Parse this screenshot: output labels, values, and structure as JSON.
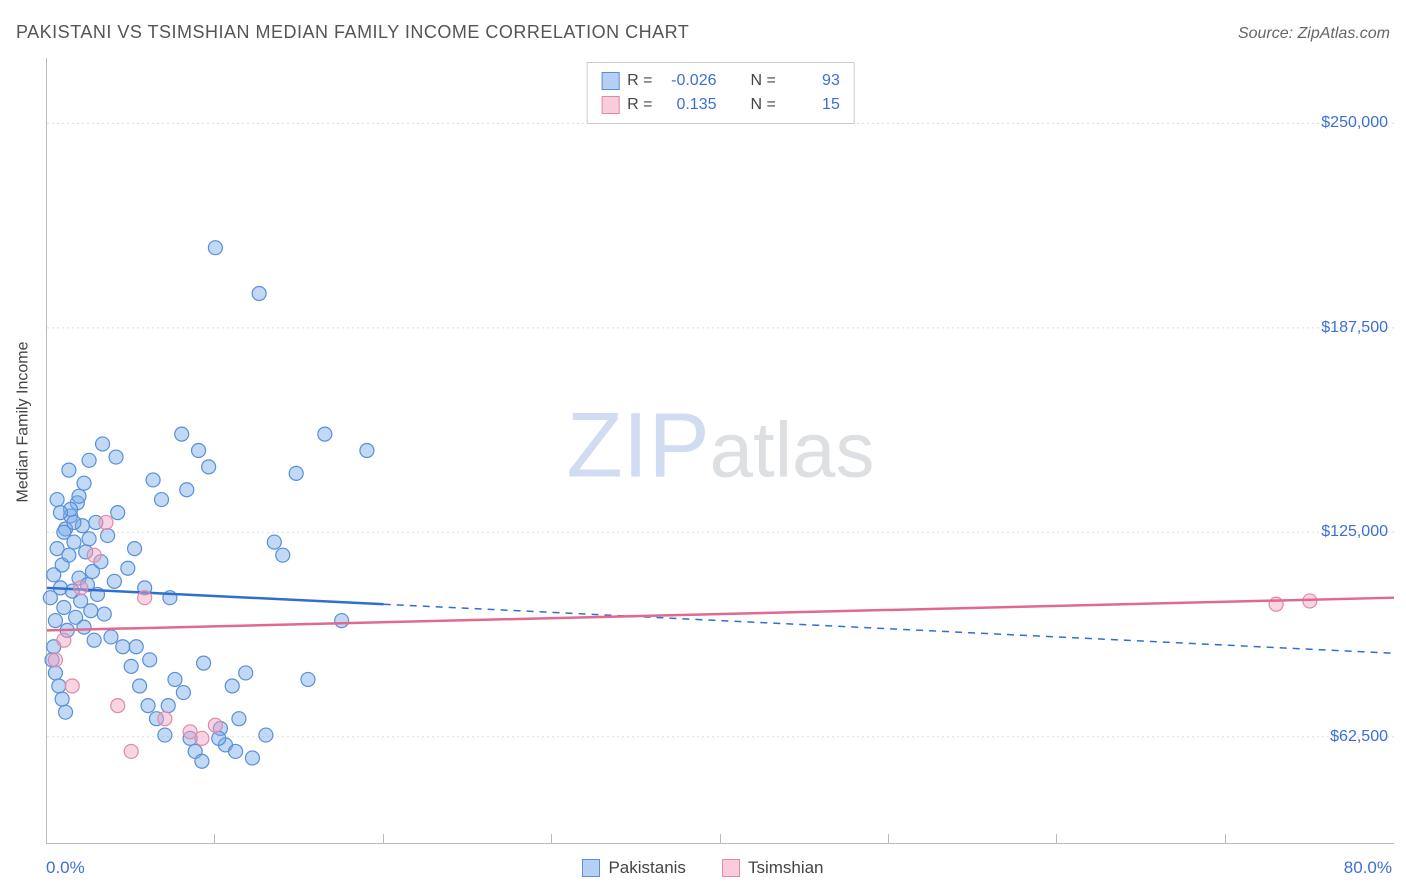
{
  "title": "PAKISTANI VS TSIMSHIAN MEDIAN FAMILY INCOME CORRELATION CHART",
  "source_label": "Source: ZipAtlas.com",
  "watermark_text_left": "ZIP",
  "watermark_text_right": "atlas",
  "y_axis_label": "Median Family Income",
  "chart": {
    "type": "scatter",
    "background_color": "#ffffff",
    "grid_color": "#dddddd",
    "axis_color": "#bbbbbb",
    "tick_label_color": "#3b6fd6",
    "axis_label_color": "#444444",
    "x_range": [
      0,
      80
    ],
    "y_range": [
      30000,
      270000
    ],
    "y_ticks": [
      {
        "v": 62500,
        "label": "$62,500"
      },
      {
        "v": 125000,
        "label": "$125,000"
      },
      {
        "v": 187500,
        "label": "$187,500"
      },
      {
        "v": 250000,
        "label": "$250,000"
      }
    ],
    "x_tick_positions": [
      10,
      20,
      30,
      40,
      50,
      60,
      70
    ],
    "x_min_label": "0.0%",
    "x_max_label": "80.0%",
    "marker_radius": 7,
    "series": [
      {
        "name": "Pakistanis",
        "fill": "rgba(120,170,235,0.45)",
        "stroke": "#5a8fd6",
        "trend_color": "#2f6fd0",
        "R": "-0.026",
        "N": "93",
        "trend_y_at_xmin": 108000,
        "trend_y_at_xmax": 88000,
        "trend_solid_x_end": 20,
        "points": [
          [
            0.2,
            105000
          ],
          [
            0.4,
            112000
          ],
          [
            0.5,
            98000
          ],
          [
            0.6,
            120000
          ],
          [
            0.8,
            108000
          ],
          [
            0.9,
            115000
          ],
          [
            1.0,
            102000
          ],
          [
            1.1,
            126000
          ],
          [
            1.2,
            95000
          ],
          [
            1.3,
            118000
          ],
          [
            1.4,
            130000
          ],
          [
            1.5,
            107000
          ],
          [
            1.6,
            122000
          ],
          [
            1.7,
            99000
          ],
          [
            1.8,
            134000
          ],
          [
            1.9,
            111000
          ],
          [
            2.0,
            104000
          ],
          [
            2.1,
            127000
          ],
          [
            2.2,
            96000
          ],
          [
            2.3,
            119000
          ],
          [
            2.4,
            109000
          ],
          [
            2.5,
            123000
          ],
          [
            2.6,
            101000
          ],
          [
            2.7,
            113000
          ],
          [
            2.8,
            92000
          ],
          [
            2.9,
            128000
          ],
          [
            3.0,
            106000
          ],
          [
            3.2,
            116000
          ],
          [
            3.4,
            100000
          ],
          [
            3.6,
            124000
          ],
          [
            3.8,
            93000
          ],
          [
            4.0,
            110000
          ],
          [
            4.2,
            131000
          ],
          [
            4.5,
            90000
          ],
          [
            4.8,
            114000
          ],
          [
            5.0,
            84000
          ],
          [
            5.2,
            120000
          ],
          [
            5.5,
            78000
          ],
          [
            5.8,
            108000
          ],
          [
            6.0,
            72000
          ],
          [
            6.3,
            141000
          ],
          [
            6.5,
            68000
          ],
          [
            6.8,
            135000
          ],
          [
            7.0,
            63000
          ],
          [
            7.3,
            105000
          ],
          [
            7.6,
            80000
          ],
          [
            8.0,
            155000
          ],
          [
            8.3,
            138000
          ],
          [
            8.5,
            62000
          ],
          [
            8.8,
            58000
          ],
          [
            9.0,
            150000
          ],
          [
            9.3,
            85000
          ],
          [
            9.6,
            145000
          ],
          [
            10.0,
            212000
          ],
          [
            10.3,
            65000
          ],
          [
            10.6,
            60000
          ],
          [
            11.0,
            78000
          ],
          [
            11.4,
            68000
          ],
          [
            11.8,
            82000
          ],
          [
            12.2,
            56000
          ],
          [
            12.6,
            198000
          ],
          [
            13.0,
            63000
          ],
          [
            13.5,
            122000
          ],
          [
            14.0,
            118000
          ],
          [
            14.8,
            143000
          ],
          [
            15.5,
            80000
          ],
          [
            16.5,
            155000
          ],
          [
            17.5,
            98000
          ],
          [
            19.0,
            150000
          ],
          [
            0.3,
            86000
          ],
          [
            0.5,
            82000
          ],
          [
            0.7,
            78000
          ],
          [
            0.9,
            74000
          ],
          [
            1.1,
            70000
          ],
          [
            1.4,
            132000
          ],
          [
            1.6,
            128000
          ],
          [
            1.9,
            136000
          ],
          [
            2.2,
            140000
          ],
          [
            2.5,
            147000
          ],
          [
            0.4,
            90000
          ],
          [
            0.6,
            135000
          ],
          [
            0.8,
            131000
          ],
          [
            1.0,
            125000
          ],
          [
            1.3,
            144000
          ],
          [
            3.3,
            152000
          ],
          [
            4.1,
            148000
          ],
          [
            5.3,
            90000
          ],
          [
            6.1,
            86000
          ],
          [
            7.2,
            72000
          ],
          [
            8.1,
            76000
          ],
          [
            9.2,
            55000
          ],
          [
            10.2,
            62000
          ],
          [
            11.2,
            58000
          ]
        ]
      },
      {
        "name": "Tsimshian",
        "fill": "rgba(245,160,190,0.45)",
        "stroke": "#e08aa8",
        "trend_color": "#e06a8f",
        "R": "0.135",
        "N": "15",
        "trend_y_at_xmin": 95000,
        "trend_y_at_xmax": 105000,
        "trend_solid_x_end": 80,
        "points": [
          [
            0.5,
            86000
          ],
          [
            1.0,
            92000
          ],
          [
            1.5,
            78000
          ],
          [
            2.0,
            108000
          ],
          [
            2.8,
            118000
          ],
          [
            3.5,
            128000
          ],
          [
            4.2,
            72000
          ],
          [
            5.0,
            58000
          ],
          [
            5.8,
            105000
          ],
          [
            7.0,
            68000
          ],
          [
            8.5,
            64000
          ],
          [
            9.2,
            62000
          ],
          [
            10.0,
            66000
          ],
          [
            73.0,
            103000
          ],
          [
            75.0,
            104000
          ]
        ]
      }
    ]
  },
  "legend": {
    "bottom": [
      {
        "label": "Pakistanis",
        "fill": "rgba(120,170,235,0.55)",
        "border": "#5a8fd6"
      },
      {
        "label": "Tsimshian",
        "fill": "rgba(245,160,190,0.55)",
        "border": "#e08aa8"
      }
    ]
  }
}
